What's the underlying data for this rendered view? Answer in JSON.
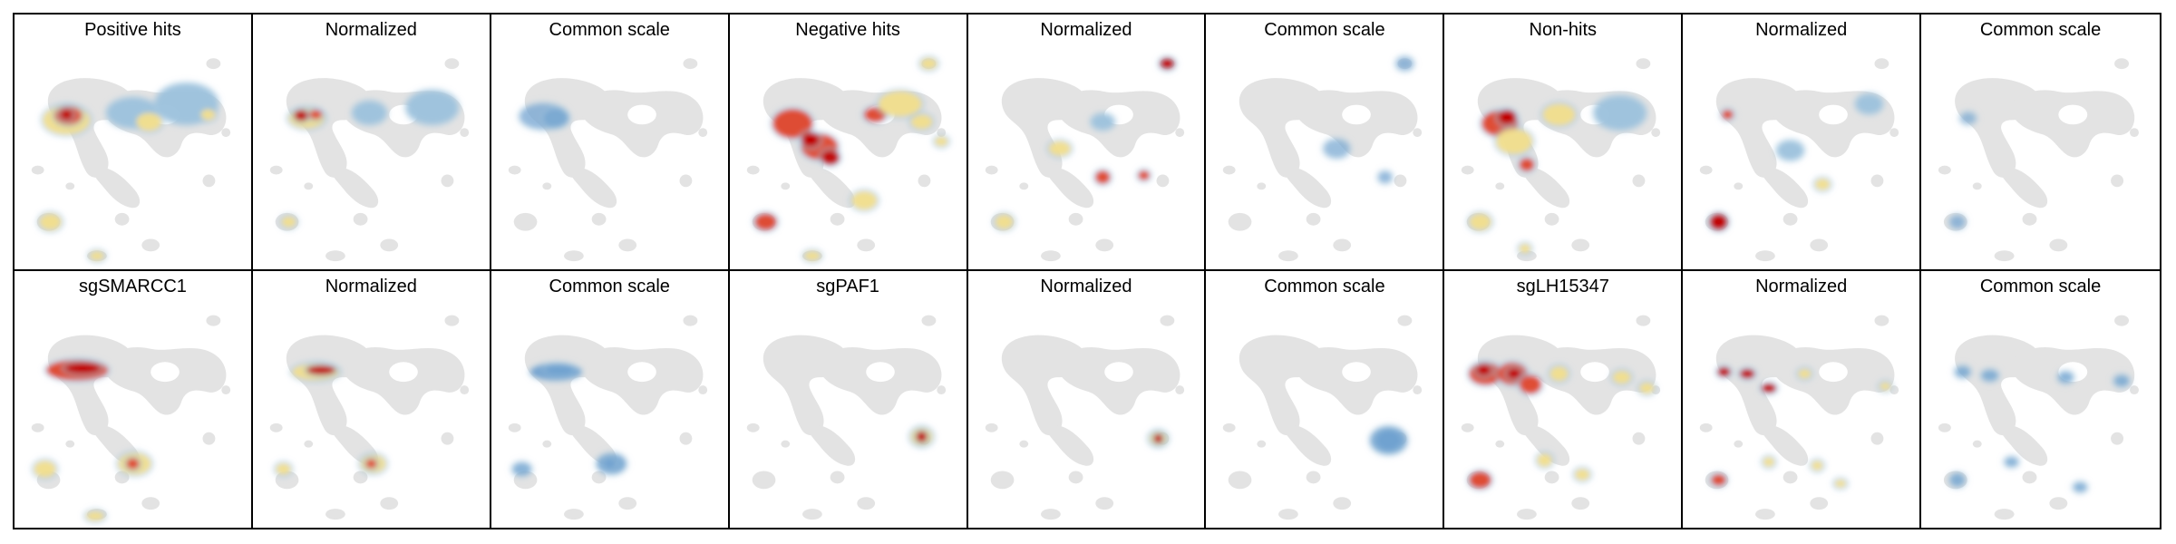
{
  "panels": [
    {
      "title": "Positive hits",
      "scale": "raw"
    },
    {
      "title": "Normalized",
      "scale": "normalized"
    },
    {
      "title": "Common scale",
      "scale": "common"
    },
    {
      "title": "Negative hits",
      "scale": "raw"
    },
    {
      "title": "Normalized",
      "scale": "normalized"
    },
    {
      "title": "Common scale",
      "scale": "common"
    },
    {
      "title": "Non-hits",
      "scale": "raw"
    },
    {
      "title": "Normalized",
      "scale": "normalized"
    },
    {
      "title": "Common scale",
      "scale": "common"
    },
    {
      "title": "sgSMARCC1",
      "scale": "raw"
    },
    {
      "title": "Normalized",
      "scale": "normalized"
    },
    {
      "title": "Common scale",
      "scale": "common"
    },
    {
      "title": "sgPAF1",
      "scale": "raw"
    },
    {
      "title": "Normalized",
      "scale": "normalized"
    },
    {
      "title": "Common scale",
      "scale": "common"
    },
    {
      "title": "sgLH15347",
      "scale": "raw"
    },
    {
      "title": "Normalized",
      "scale": "normalized"
    },
    {
      "title": "Common scale",
      "scale": "common"
    }
  ],
  "colors": {
    "background_cells": "#e3e3e3",
    "low_density": "#9ec3dd",
    "mid_density": "#f3df8c",
    "high_density": "#e0452b",
    "peak_density": "#c00000",
    "common_scale": "#6fa1cf"
  }
}
